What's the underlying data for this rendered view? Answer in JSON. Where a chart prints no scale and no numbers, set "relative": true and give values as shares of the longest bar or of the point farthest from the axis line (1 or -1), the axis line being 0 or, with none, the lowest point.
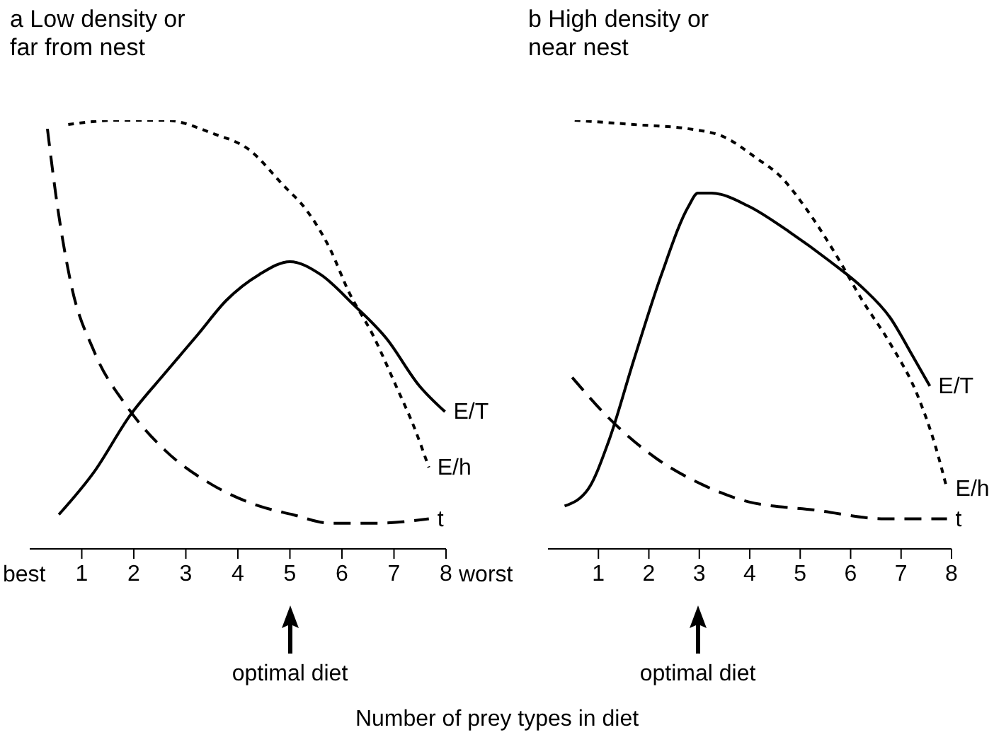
{
  "chart_data": [
    {
      "type": "line",
      "title": "a Low density or far from nest",
      "relative": true,
      "xlim": [
        0,
        8
      ],
      "xticks": [
        1,
        2,
        3,
        4,
        5,
        6,
        7,
        8
      ],
      "xlabel": "Number of prey types in diet",
      "marker": "none",
      "grid": false,
      "legend": false,
      "annotations": [
        "best",
        "worst",
        "optimal diet"
      ],
      "series": [
        {
          "name": "E/h",
          "color": "#000000",
          "line_style": "dotted",
          "x": [
            0.74,
            1.69,
            2.6,
            3.5,
            4.23,
            4.86,
            5.32,
            5.77,
            6.13,
            6.59,
            7.04,
            7.4,
            7.67
          ],
          "values": [
            0.99,
            1.0,
            1.0,
            0.97,
            0.93,
            0.85,
            0.79,
            0.7,
            0.6,
            0.5,
            0.38,
            0.28,
            0.19
          ]
        },
        {
          "name": "E/T",
          "color": "#000000",
          "line_style": "solid",
          "x": [
            0.56,
            1.24,
            1.92,
            2.6,
            3.23,
            3.78,
            4.41,
            5.0,
            5.59,
            6.22,
            6.86,
            7.49,
            7.98
          ],
          "values": [
            0.08,
            0.18,
            0.31,
            0.41,
            0.5,
            0.58,
            0.64,
            0.67,
            0.64,
            0.57,
            0.49,
            0.38,
            0.32
          ]
        },
        {
          "name": "t",
          "color": "#000000",
          "line_style": "dashed",
          "x": [
            0.34,
            0.52,
            0.79,
            1.24,
            1.88,
            2.6,
            3.5,
            4.41,
            5.05,
            5.77,
            6.68,
            7.67
          ],
          "values": [
            0.98,
            0.81,
            0.62,
            0.46,
            0.33,
            0.23,
            0.15,
            0.1,
            0.08,
            0.06,
            0.06,
            0.07
          ]
        }
      ]
    },
    {
      "type": "line",
      "title": "b High density or near nest",
      "relative": true,
      "xlim": [
        0,
        8
      ],
      "xticks": [
        1,
        2,
        3,
        4,
        5,
        6,
        7,
        8
      ],
      "marker": "none",
      "grid": false,
      "legend": false,
      "annotations": [
        "optimal diet"
      ],
      "series": [
        {
          "name": "E/h",
          "color": "#000000",
          "line_style": "dotted",
          "x": [
            0.53,
            1.7,
            2.79,
            3.51,
            4.15,
            4.6,
            5.14,
            5.69,
            6.23,
            6.78,
            7.32,
            7.68,
            7.91
          ],
          "values": [
            1.0,
            0.99,
            0.98,
            0.96,
            0.91,
            0.87,
            0.79,
            0.69,
            0.58,
            0.48,
            0.36,
            0.24,
            0.14
          ]
        },
        {
          "name": "E/T",
          "color": "#000000",
          "line_style": "solid",
          "x": [
            0.33,
            0.8,
            1.2,
            1.7,
            2.25,
            2.79,
            2.97,
            3.24,
            3.97,
            4.78,
            5.6,
            6.23,
            6.78,
            7.23,
            7.57
          ],
          "values": [
            0.1,
            0.14,
            0.25,
            0.44,
            0.64,
            0.8,
            0.83,
            0.83,
            0.8,
            0.74,
            0.67,
            0.61,
            0.54,
            0.45,
            0.38
          ]
        },
        {
          "name": "t",
          "color": "#000000",
          "line_style": "dashed",
          "x": [
            0.48,
            1.25,
            2.16,
            3.06,
            3.97,
            5.33,
            6.68,
            7.91
          ],
          "values": [
            0.4,
            0.3,
            0.21,
            0.15,
            0.11,
            0.09,
            0.07,
            0.07
          ]
        }
      ]
    }
  ]
}
